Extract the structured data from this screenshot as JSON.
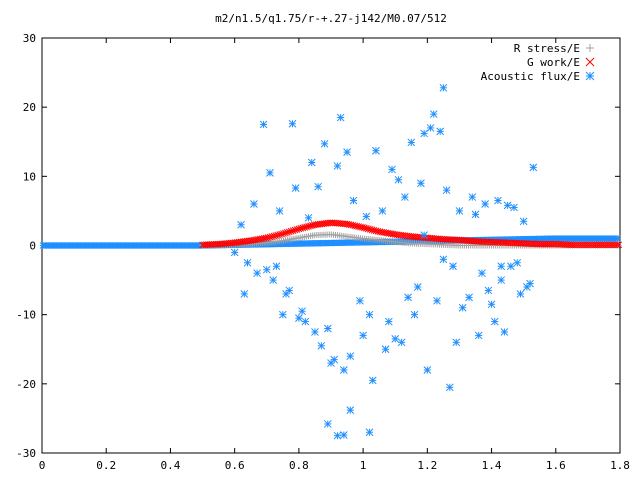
{
  "chart_data": {
    "type": "scatter",
    "title": "m2/n1.5/q1.75/r-+.27-j142/M0.07/512",
    "xlabel": "",
    "ylabel": "",
    "xlim": [
      0,
      1.8
    ],
    "ylim": [
      -30,
      30
    ],
    "x_ticks": [
      "0",
      "0.2",
      "0.4",
      "0.6",
      "0.8",
      "1",
      "1.2",
      "1.4",
      "1.6",
      "1.8"
    ],
    "y_ticks": [
      "30",
      "20",
      "10",
      "0",
      "-10",
      "-20",
      "-30"
    ],
    "legend_position": "top-right",
    "series": [
      {
        "name": "R stress/E",
        "color": "#a0a0a0",
        "marker": "plus",
        "x": [
          0.5,
          0.55,
          0.6,
          0.65,
          0.7,
          0.75,
          0.8,
          0.85,
          0.9,
          0.95,
          1.0,
          1.05,
          1.1,
          1.15,
          1.2,
          1.25,
          1.3,
          1.35,
          1.4,
          1.45,
          1.5,
          1.55,
          1.6,
          1.65,
          1.7,
          1.75,
          1.8
        ],
        "y": [
          0.0,
          0.05,
          0.1,
          0.2,
          0.4,
          0.7,
          1.1,
          1.5,
          1.6,
          1.3,
          1.0,
          0.8,
          0.5,
          0.3,
          0.2,
          0.1,
          0.0,
          0.0,
          0.0,
          0.0,
          0.0,
          0.0,
          0.0,
          0.0,
          0.0,
          0.0,
          0.0
        ]
      },
      {
        "name": "G work/E",
        "color": "#ff0000",
        "marker": "cross",
        "x": [
          0.5,
          0.55,
          0.6,
          0.65,
          0.7,
          0.75,
          0.8,
          0.85,
          0.9,
          0.95,
          1.0,
          1.05,
          1.1,
          1.15,
          1.2,
          1.25,
          1.3,
          1.35,
          1.4,
          1.45,
          1.5,
          1.55,
          1.6,
          1.65,
          1.7,
          1.75,
          1.8
        ],
        "y": [
          0.1,
          0.2,
          0.4,
          0.7,
          1.1,
          1.7,
          2.4,
          3.0,
          3.3,
          3.1,
          2.6,
          2.0,
          1.6,
          1.3,
          1.1,
          0.9,
          0.8,
          0.6,
          0.5,
          0.4,
          0.3,
          0.2,
          0.2,
          0.1,
          0.1,
          0.1,
          0.1
        ]
      },
      {
        "name": "Acoustic flux/E",
        "color": "#1f8fff",
        "marker": "star",
        "baseline_x": [
          0,
          0.5,
          1.6,
          1.8
        ],
        "baseline_y": [
          0,
          0,
          1,
          1
        ],
        "x": [
          0.69,
          0.78,
          0.93,
          0.88,
          0.95,
          1.25,
          1.04,
          1.15,
          1.19,
          1.21,
          1.22,
          1.24,
          1.09,
          1.11,
          0.71,
          0.92,
          0.86,
          0.84,
          1.53,
          1.26,
          1.34,
          1.42,
          1.45,
          1.47,
          1.35,
          0.62,
          0.66,
          0.74,
          0.79,
          0.83,
          0.97,
          1.01,
          1.06,
          1.13,
          1.18,
          1.3,
          1.38,
          1.5,
          0.6,
          0.64,
          0.72,
          0.76,
          0.81,
          0.89,
          0.99,
          1.07,
          1.16,
          1.23,
          1.29,
          1.36,
          1.41,
          1.49,
          0.67,
          0.73,
          0.8,
          0.87,
          0.94,
          1.02,
          1.1,
          1.17,
          1.27,
          1.33,
          1.39,
          1.46,
          1.52,
          0.7,
          0.77,
          0.82,
          0.9,
          0.96,
          1.03,
          1.12,
          1.2,
          1.28,
          1.37,
          1.43,
          1.48,
          0.63,
          0.75,
          0.85,
          0.91,
          1.0,
          1.08,
          1.14,
          1.31,
          1.4,
          1.44,
          1.51,
          0.89,
          0.92,
          0.94,
          0.96,
          1.02,
          1.25,
          1.19,
          1.43
        ],
        "y": [
          17.5,
          17.6,
          18.5,
          14.7,
          13.5,
          22.8,
          13.7,
          14.9,
          16.2,
          17.0,
          19.0,
          16.5,
          11.0,
          9.5,
          10.5,
          11.5,
          8.5,
          12.0,
          11.3,
          8.0,
          7.0,
          6.5,
          5.8,
          5.5,
          4.5,
          3.0,
          6.0,
          5.0,
          8.3,
          4.0,
          6.5,
          4.2,
          5.0,
          7.0,
          9.0,
          5.0,
          6.0,
          3.5,
          -1.0,
          -2.5,
          -5.0,
          -7.0,
          -9.5,
          -12.0,
          -8.0,
          -15.0,
          -10.0,
          -8.0,
          -14.0,
          -13.0,
          -11.0,
          -7.0,
          -4.0,
          -3.0,
          -10.5,
          -14.5,
          -18.0,
          -10.0,
          -13.5,
          -6.0,
          -20.5,
          -7.5,
          -6.5,
          -3.0,
          -5.5,
          -3.5,
          -6.5,
          -11.0,
          -17.0,
          -16.0,
          -19.5,
          -14.0,
          -18.0,
          -3.0,
          -4.0,
          -5.0,
          -2.5,
          -7.0,
          -10.0,
          -12.5,
          -16.5,
          -13.0,
          -11.0,
          -7.5,
          -9.0,
          -8.5,
          -12.5,
          -6.0,
          -25.8,
          -27.5,
          -27.4,
          -23.8,
          -27.0,
          -2.0,
          1.5,
          -3.0
        ]
      }
    ]
  }
}
